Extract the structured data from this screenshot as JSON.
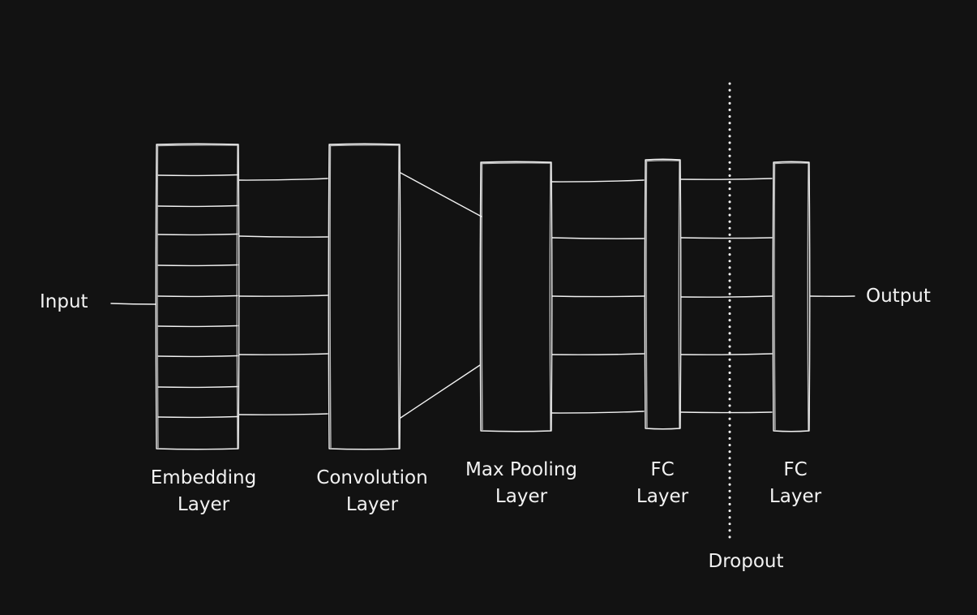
{
  "diagram": {
    "input_label": "Input",
    "output_label": "Output",
    "dropout_label": "Dropout",
    "layers": [
      {
        "id": "embedding",
        "line1": "Embedding",
        "line2": "Layer"
      },
      {
        "id": "convolution",
        "line1": "Convolution",
        "line2": "Layer"
      },
      {
        "id": "maxpool",
        "line1": "Max Pooling",
        "line2": "Layer"
      },
      {
        "id": "fc1",
        "line1": "FC",
        "line2": "Layer"
      },
      {
        "id": "fc2",
        "line1": "FC",
        "line2": "Layer"
      }
    ]
  },
  "colors": {
    "background": "#121212",
    "stroke": "#f2f2f2"
  }
}
